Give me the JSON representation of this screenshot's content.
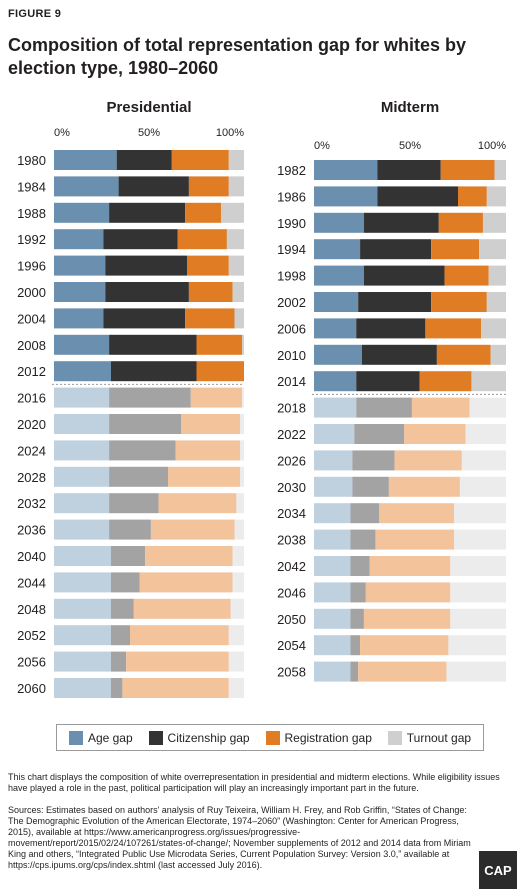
{
  "header": {
    "figure_label": "FIGURE 9",
    "title": "Composition of total representation gap for whites by election type, 1980–2060"
  },
  "legend": {
    "items": [
      {
        "label": "Age gap",
        "color": "#6b8fae"
      },
      {
        "label": "Citizenship gap",
        "color": "#333333"
      },
      {
        "label": "Registration gap",
        "color": "#e07c24"
      },
      {
        "label": "Turnout gap",
        "color": "#cfcfcf"
      }
    ]
  },
  "colors": {
    "historical": [
      "#6b8fae",
      "#333333",
      "#e07c24",
      "#cfcfcf"
    ],
    "projected": [
      "#bfd0df",
      "#a3a3a3",
      "#f3c39c",
      "#ececec"
    ],
    "projection_divider": "#9a9a9a"
  },
  "footer": {
    "note": "This chart displays the composition of white overrepresentation in presidential and midterm elections. While eligibility issues have played a role in the past, political participation will play an increasingly important part in the future.",
    "sources": "Sources: Estimates based on authors' analysis of Ruy Teixeira, William H. Frey, and Rob Griffin, “States of Change: The Demographic Evolution of the American Electorate, 1974–2060” (Washington: Center for American Progress, 2015), available at https://www.americanprogress.org/issues/progressive-movement/report/2015/02/24/107261/states-of-change/; November supplements of 2012 and 2014 data from Miriam King and others, “Integrated Public Use Microdata Series, Current Population Survey: Version 3.0,” available at https://cps.ipums.org/cps/index.shtml (last accessed July 2016).",
    "logo": "CAP"
  },
  "chart_data": [
    {
      "type": "bar",
      "orientation": "horizontal",
      "stacked": true,
      "title": "Presidential",
      "xlim": [
        0,
        100
      ],
      "xticks": [
        "0%",
        "50%",
        "100%"
      ],
      "series_names": [
        "Age gap",
        "Citizenship gap",
        "Registration gap",
        "Turnout gap"
      ],
      "last_historical_index": 8,
      "rows": [
        {
          "label": "1980",
          "values": [
            33,
            29,
            30,
            8
          ]
        },
        {
          "label": "1984",
          "values": [
            34,
            37,
            21,
            8
          ]
        },
        {
          "label": "1988",
          "values": [
            29,
            40,
            19,
            12
          ]
        },
        {
          "label": "1992",
          "values": [
            26,
            39,
            26,
            9
          ]
        },
        {
          "label": "1996",
          "values": [
            27,
            43,
            22,
            8
          ]
        },
        {
          "label": "2000",
          "values": [
            27,
            44,
            23,
            6
          ]
        },
        {
          "label": "2004",
          "values": [
            26,
            43,
            26,
            5
          ]
        },
        {
          "label": "2008",
          "values": [
            29,
            46,
            24,
            1
          ]
        },
        {
          "label": "2012",
          "values": [
            30,
            45,
            25,
            0
          ]
        },
        {
          "label": "2016",
          "values": [
            29,
            43,
            27,
            1
          ]
        },
        {
          "label": "2020",
          "values": [
            29,
            38,
            31,
            2
          ]
        },
        {
          "label": "2024",
          "values": [
            29,
            35,
            34,
            2
          ]
        },
        {
          "label": "2028",
          "values": [
            29,
            31,
            38,
            2
          ]
        },
        {
          "label": "2032",
          "values": [
            29,
            26,
            41,
            4
          ]
        },
        {
          "label": "2036",
          "values": [
            29,
            22,
            44,
            5
          ]
        },
        {
          "label": "2040",
          "values": [
            30,
            18,
            46,
            6
          ]
        },
        {
          "label": "2044",
          "values": [
            30,
            15,
            49,
            6
          ]
        },
        {
          "label": "2048",
          "values": [
            30,
            12,
            51,
            7
          ]
        },
        {
          "label": "2052",
          "values": [
            30,
            10,
            52,
            8
          ]
        },
        {
          "label": "2056",
          "values": [
            30,
            8,
            54,
            8
          ]
        },
        {
          "label": "2060",
          "values": [
            30,
            6,
            56,
            8
          ]
        }
      ]
    },
    {
      "type": "bar",
      "orientation": "horizontal",
      "stacked": true,
      "title": "Midterm",
      "xlim": [
        0,
        100
      ],
      "xticks": [
        "0%",
        "50%",
        "100%"
      ],
      "series_names": [
        "Age gap",
        "Citizenship gap",
        "Registration gap",
        "Turnout gap"
      ],
      "last_historical_index": 8,
      "rows": [
        {
          "label": "1982",
          "values": [
            33,
            33,
            28,
            6
          ]
        },
        {
          "label": "1986",
          "values": [
            33,
            42,
            15,
            10
          ]
        },
        {
          "label": "1990",
          "values": [
            26,
            39,
            23,
            12
          ]
        },
        {
          "label": "1994",
          "values": [
            24,
            37,
            25,
            14
          ]
        },
        {
          "label": "1998",
          "values": [
            26,
            42,
            23,
            9
          ]
        },
        {
          "label": "2002",
          "values": [
            23,
            38,
            29,
            10
          ]
        },
        {
          "label": "2006",
          "values": [
            22,
            36,
            29,
            13
          ]
        },
        {
          "label": "2010",
          "values": [
            25,
            39,
            28,
            8
          ]
        },
        {
          "label": "2014",
          "values": [
            22,
            33,
            27,
            18
          ]
        },
        {
          "label": "2018",
          "values": [
            22,
            29,
            30,
            19
          ]
        },
        {
          "label": "2022",
          "values": [
            21,
            26,
            32,
            21
          ]
        },
        {
          "label": "2026",
          "values": [
            20,
            22,
            35,
            23
          ]
        },
        {
          "label": "2030",
          "values": [
            20,
            19,
            37,
            24
          ]
        },
        {
          "label": "2034",
          "values": [
            19,
            15,
            39,
            27
          ]
        },
        {
          "label": "2038",
          "values": [
            19,
            13,
            41,
            27
          ]
        },
        {
          "label": "2042",
          "values": [
            19,
            10,
            42,
            29
          ]
        },
        {
          "label": "2046",
          "values": [
            19,
            8,
            44,
            29
          ]
        },
        {
          "label": "2050",
          "values": [
            19,
            7,
            45,
            29
          ]
        },
        {
          "label": "2054",
          "values": [
            19,
            5,
            46,
            30
          ]
        },
        {
          "label": "2058",
          "values": [
            19,
            4,
            46,
            31
          ]
        }
      ]
    }
  ]
}
